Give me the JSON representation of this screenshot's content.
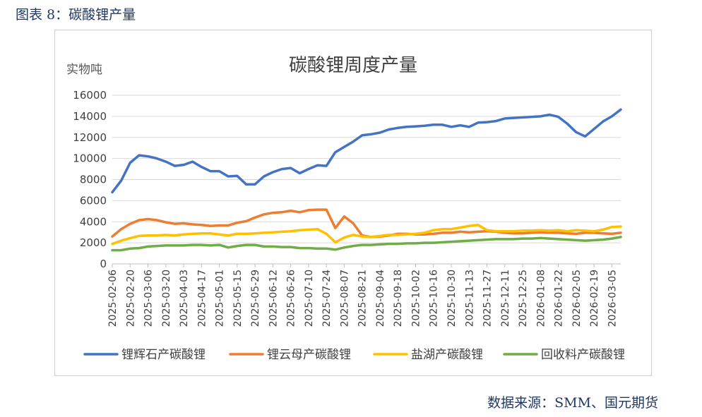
{
  "figure": {
    "caption": "图表 8：碳酸锂产量",
    "source": "数据来源：SMM、国元期货"
  },
  "chart_data": {
    "type": "line",
    "title": "碳酸锂周度产量",
    "ylabel": "实物吨",
    "xlabel": "",
    "ylim": [
      0,
      16000
    ],
    "yticks": [
      0,
      2000,
      4000,
      6000,
      8000,
      10000,
      12000,
      14000,
      16000
    ],
    "grid": true,
    "legend_position": "bottom",
    "x_tick_labels": [
      "2025-02-06",
      "2025-02-20",
      "2025-03-06",
      "2025-03-20",
      "2025-04-03",
      "2025-04-17",
      "2025-05-01",
      "2025-05-15",
      "2025-05-29",
      "2025-06-12",
      "2025-06-26",
      "2025-07-10",
      "2025-07-24",
      "2025-08-07",
      "2025-08-21",
      "2025-09-04",
      "2025-09-18",
      "2025-10-02",
      "2025-10-16",
      "2025-10-30",
      "2025-11-13",
      "2025-11-27",
      "2025-12-11",
      "2025-12-25",
      "2026-01-08",
      "2026-01-22",
      "2026-02-05",
      "2026-02-19",
      "2026-03-05"
    ],
    "n_points": 58,
    "series": [
      {
        "name": "锂辉石产碳酸锂",
        "color": "#4472C4",
        "values": [
          6800,
          7900,
          9600,
          10300,
          10200,
          10000,
          9700,
          9300,
          9400,
          9700,
          9200,
          8800,
          8800,
          8300,
          8350,
          7550,
          7550,
          8300,
          8700,
          9000,
          9100,
          8600,
          9000,
          9350,
          9300,
          10600,
          11100,
          11600,
          12200,
          12300,
          12450,
          12750,
          12900,
          13000,
          13050,
          13100,
          13200,
          13200,
          13000,
          13150,
          13000,
          13400,
          13450,
          13550,
          13800,
          13850,
          13900,
          13950,
          14000,
          14150,
          13950,
          13300,
          12500,
          12100,
          12800,
          13500,
          14000,
          14650
        ]
      },
      {
        "name": "锂云母产碳酸锂",
        "color": "#ED7D31",
        "values": [
          2600,
          3300,
          3800,
          4150,
          4250,
          4150,
          3950,
          3800,
          3850,
          3750,
          3700,
          3600,
          3650,
          3650,
          3900,
          4050,
          4400,
          4700,
          4850,
          4900,
          5050,
          4900,
          5100,
          5150,
          5150,
          3400,
          4500,
          3850,
          2700,
          2550,
          2600,
          2700,
          2850,
          2850,
          2800,
          2800,
          2850,
          2950,
          2950,
          3050,
          3000,
          3050,
          3100,
          3050,
          2950,
          2900,
          2900,
          2950,
          3000,
          2950,
          2950,
          2900,
          2850,
          2950,
          2950,
          2900,
          2850,
          2950
        ]
      },
      {
        "name": "盐湖产碳酸锂",
        "color": "#FFC000",
        "values": [
          1900,
          2200,
          2450,
          2650,
          2700,
          2700,
          2750,
          2700,
          2800,
          2850,
          2900,
          2900,
          2800,
          2700,
          2850,
          2850,
          2900,
          2950,
          3000,
          3050,
          3100,
          3200,
          3250,
          3300,
          2850,
          2050,
          2500,
          2750,
          2600,
          2550,
          2650,
          2750,
          2750,
          2800,
          2850,
          2950,
          3200,
          3300,
          3300,
          3450,
          3600,
          3700,
          3200,
          3100,
          3100,
          3100,
          3150,
          3150,
          3200,
          3150,
          3200,
          3100,
          3200,
          3150,
          3100,
          3250,
          3500,
          3550
        ]
      },
      {
        "name": "回收料产碳酸锂",
        "color": "#70AD47",
        "values": [
          1300,
          1300,
          1450,
          1500,
          1650,
          1700,
          1750,
          1750,
          1750,
          1800,
          1800,
          1750,
          1800,
          1550,
          1700,
          1800,
          1800,
          1650,
          1650,
          1600,
          1600,
          1500,
          1500,
          1450,
          1450,
          1350,
          1550,
          1700,
          1800,
          1800,
          1850,
          1900,
          1900,
          1950,
          1950,
          2000,
          2000,
          2050,
          2100,
          2150,
          2200,
          2250,
          2300,
          2350,
          2350,
          2350,
          2400,
          2400,
          2450,
          2400,
          2350,
          2300,
          2250,
          2200,
          2250,
          2300,
          2400,
          2550
        ]
      }
    ]
  }
}
